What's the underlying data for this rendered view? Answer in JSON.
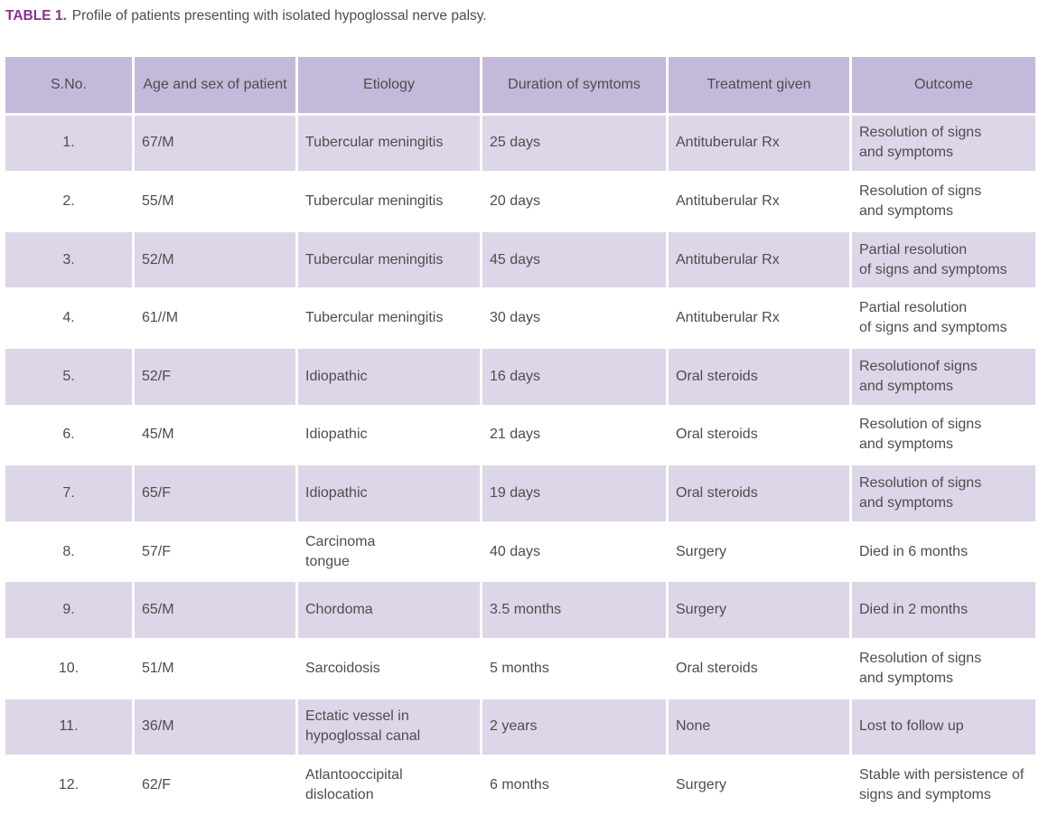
{
  "caption": {
    "label": "TABLE 1.",
    "text": "Profile of patients presenting with isolated hypoglossal nerve palsy."
  },
  "headers": [
    "S.No.",
    "Age and sex of patient",
    "Etiology",
    "Duration of symtoms",
    "Treatment given",
    "Outcome"
  ],
  "rows": [
    [
      "1.",
      "67/M",
      "Tubercular meningitis",
      "25 days",
      "Antituberular Rx",
      "Resolution of signs\nand symptoms"
    ],
    [
      "2.",
      "55/M",
      "Tubercular meningitis",
      "20 days",
      "Antituberular Rx",
      "Resolution of signs\nand symptoms"
    ],
    [
      "3.",
      "52/M",
      "Tubercular meningitis",
      "45 days",
      "Antituberular Rx",
      "Partial resolution\nof signs and symptoms"
    ],
    [
      "4.",
      "61//M",
      "Tubercular meningitis",
      "30 days",
      "Antituberular Rx",
      "Partial resolution\nof signs and symptoms"
    ],
    [
      "5.",
      "52/F",
      "Idiopathic",
      "16 days",
      "Oral steroids",
      "Resolutionof signs\nand symptoms"
    ],
    [
      "6.",
      "45/M",
      "Idiopathic",
      "21 days",
      "Oral steroids",
      "Resolution of signs\nand symptoms"
    ],
    [
      "7.",
      "65/F",
      "Idiopathic",
      "19 days",
      "Oral steroids",
      "Resolution of signs\nand symptoms"
    ],
    [
      "8.",
      "57/F",
      "Carcinoma\ntongue",
      "40 days",
      "Surgery",
      "Died in 6 months"
    ],
    [
      "9.",
      "65/M",
      "Chordoma",
      "3.5 months",
      "Surgery",
      "Died in 2 months"
    ],
    [
      "10.",
      "51/M",
      "Sarcoidosis",
      "5 months",
      "Oral steroids",
      "Resolution of signs\nand symptoms"
    ],
    [
      "11.",
      "36/M",
      "Ectatic vessel in\nhypoglossal canal",
      "2 years",
      "None",
      "Lost to follow up"
    ],
    [
      "12.",
      "62/F",
      "Atlantooccipital\ndislocation",
      "6 months",
      "Surgery",
      "Stable with persistence of\nsigns and symptoms"
    ]
  ]
}
